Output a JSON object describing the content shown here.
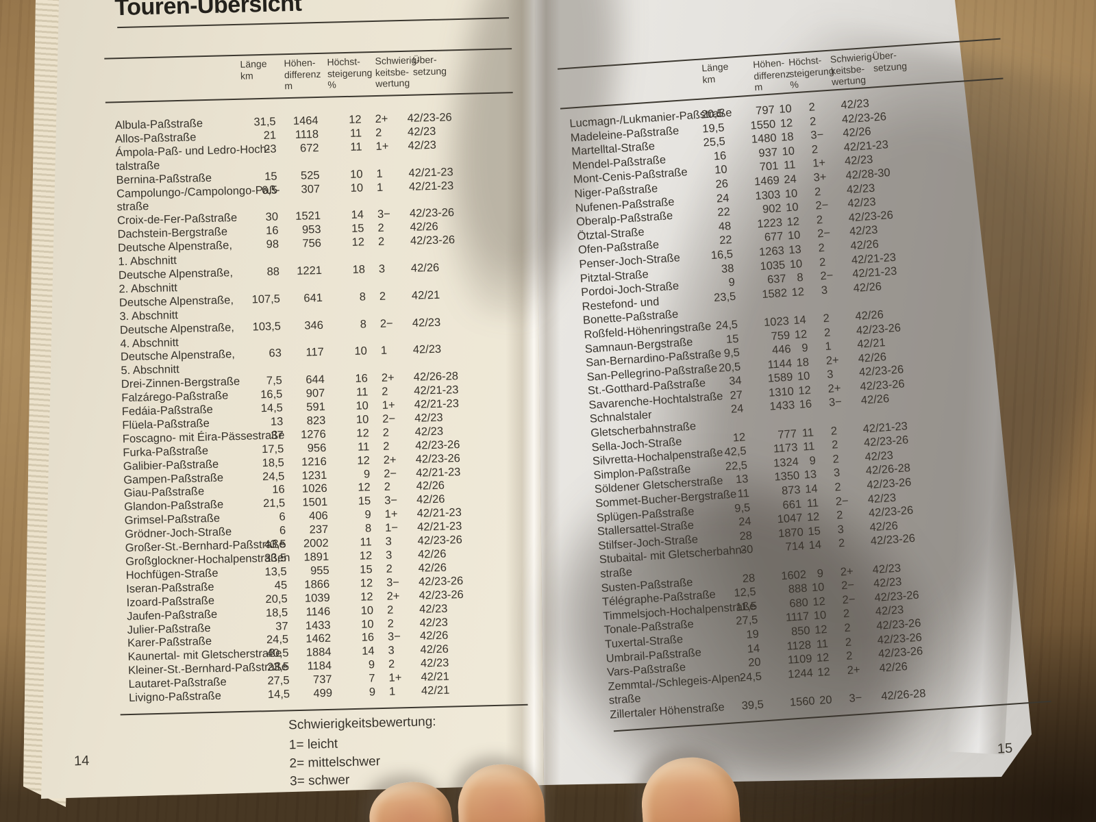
{
  "palette": {
    "wood": "#8f6f46",
    "paper_left": "#efe9d9",
    "paper_right": "#ecebe6",
    "ink": "#36322b",
    "skin": "#d8a87d"
  },
  "book": {
    "title": "Touren-Übersicht",
    "header": {
      "col_laenge": "Länge\nkm",
      "col_hoehendifferenz": "Höhen-\ndifferenz\nm",
      "col_hoechststeigerung": "Höchst-\nsteigerung\n%",
      "col_schwierigkeit": "Schwierig-\nkeitsbe-\nwertung",
      "col_uebersetzung": "Über-\nsetzung"
    },
    "legend": {
      "title": "Schwierigkeitsbewertung:",
      "items": [
        "1= leicht",
        "2= mittelschwer",
        "3= schwer"
      ]
    },
    "page_left": {
      "number": "14",
      "rows": [
        {
          "name": [
            "Albula-Paßstraße"
          ],
          "laenge": "31,5",
          "hoehe": "1464",
          "steigung": "12",
          "bewertung": "2+",
          "uebersetzung": "42/23-26"
        },
        {
          "name": [
            "Allos-Paßstraße"
          ],
          "laenge": "21",
          "hoehe": "1118",
          "steigung": "11",
          "bewertung": "2",
          "uebersetzung": "42/23"
        },
        {
          "name": [
            "Ámpola-Paß- und Ledro-Hoch-",
            "talstraße"
          ],
          "laenge": "23",
          "hoehe": "672",
          "steigung": "11",
          "bewertung": "1+",
          "uebersetzung": "42/23"
        },
        {
          "name": [
            "Bernina-Paßstraße"
          ],
          "laenge": "15",
          "hoehe": "525",
          "steigung": "10",
          "bewertung": "1",
          "uebersetzung": "42/21-23"
        },
        {
          "name": [
            "Campolungo-/Campolongo-Paß-",
            "straße"
          ],
          "laenge": "6,5",
          "hoehe": "307",
          "steigung": "10",
          "bewertung": "1",
          "uebersetzung": "42/21-23"
        },
        {
          "name": [
            "Croix-de-Fer-Paßstraße"
          ],
          "laenge": "30",
          "hoehe": "1521",
          "steigung": "14",
          "bewertung": "3−",
          "uebersetzung": "42/23-26"
        },
        {
          "name": [
            "Dachstein-Bergstraße"
          ],
          "laenge": "16",
          "hoehe": "953",
          "steigung": "15",
          "bewertung": "2",
          "uebersetzung": "42/26"
        },
        {
          "name": [
            "Deutsche Alpenstraße,",
            "1. Abschnitt"
          ],
          "laenge": "98",
          "hoehe": "756",
          "steigung": "12",
          "bewertung": "2",
          "uebersetzung": "42/23-26"
        },
        {
          "name": [
            "Deutsche Alpenstraße,",
            "2. Abschnitt"
          ],
          "laenge": "88",
          "hoehe": "1221",
          "steigung": "18",
          "bewertung": "3",
          "uebersetzung": "42/26"
        },
        {
          "name": [
            "Deutsche Alpenstraße,",
            "3. Abschnitt"
          ],
          "laenge": "107,5",
          "hoehe": "641",
          "steigung": "8",
          "bewertung": "2",
          "uebersetzung": "42/21"
        },
        {
          "name": [
            "Deutsche Alpenstraße,",
            "4. Abschnitt"
          ],
          "laenge": "103,5",
          "hoehe": "346",
          "steigung": "8",
          "bewertung": "2−",
          "uebersetzung": "42/23"
        },
        {
          "name": [
            "Deutsche Alpenstraße,",
            "5. Abschnitt"
          ],
          "laenge": "63",
          "hoehe": "117",
          "steigung": "10",
          "bewertung": "1",
          "uebersetzung": "42/23"
        },
        {
          "name": [
            "Drei-Zinnen-Bergstraße"
          ],
          "laenge": "7,5",
          "hoehe": "644",
          "steigung": "16",
          "bewertung": "2+",
          "uebersetzung": "42/26-28"
        },
        {
          "name": [
            "Falzárego-Paßstraße"
          ],
          "laenge": "16,5",
          "hoehe": "907",
          "steigung": "11",
          "bewertung": "2",
          "uebersetzung": "42/21-23"
        },
        {
          "name": [
            "Fedáia-Paßstraße"
          ],
          "laenge": "14,5",
          "hoehe": "591",
          "steigung": "10",
          "bewertung": "1+",
          "uebersetzung": "42/21-23"
        },
        {
          "name": [
            "Flüela-Paßstraße"
          ],
          "laenge": "13",
          "hoehe": "823",
          "steigung": "10",
          "bewertung": "2−",
          "uebersetzung": "42/23"
        },
        {
          "name": [
            "Foscagno- mit Éira-Pässestraße"
          ],
          "laenge": "37",
          "hoehe": "1276",
          "steigung": "12",
          "bewertung": "2",
          "uebersetzung": "42/23"
        },
        {
          "name": [
            "Furka-Paßstraße"
          ],
          "laenge": "17,5",
          "hoehe": "956",
          "steigung": "11",
          "bewertung": "2",
          "uebersetzung": "42/23-26"
        },
        {
          "name": [
            "Galibier-Paßstraße"
          ],
          "laenge": "18,5",
          "hoehe": "1216",
          "steigung": "12",
          "bewertung": "2+",
          "uebersetzung": "42/23-26"
        },
        {
          "name": [
            "Gampen-Paßstraße"
          ],
          "laenge": "24,5",
          "hoehe": "1231",
          "steigung": "9",
          "bewertung": "2−",
          "uebersetzung": "42/21-23"
        },
        {
          "name": [
            "Giau-Paßstraße"
          ],
          "laenge": "16",
          "hoehe": "1026",
          "steigung": "12",
          "bewertung": "2",
          "uebersetzung": "42/26"
        },
        {
          "name": [
            "Glandon-Paßstraße"
          ],
          "laenge": "21,5",
          "hoehe": "1501",
          "steigung": "15",
          "bewertung": "3−",
          "uebersetzung": "42/26"
        },
        {
          "name": [
            "Grimsel-Paßstraße"
          ],
          "laenge": "6",
          "hoehe": "406",
          "steigung": "9",
          "bewertung": "1+",
          "uebersetzung": "42/21-23"
        },
        {
          "name": [
            "Grödner-Joch-Straße"
          ],
          "laenge": "6",
          "hoehe": "237",
          "steigung": "8",
          "bewertung": "1−",
          "uebersetzung": "42/21-23"
        },
        {
          "name": [
            "Großer-St.-Bernhard-Paßstraße"
          ],
          "laenge": "43,5",
          "hoehe": "2002",
          "steigung": "11",
          "bewertung": "3",
          "uebersetzung": "42/23-26"
        },
        {
          "name": [
            "Großglockner-Hochalpenstraßen"
          ],
          "laenge": "33,5",
          "hoehe": "1891",
          "steigung": "12",
          "bewertung": "3",
          "uebersetzung": "42/26"
        },
        {
          "name": [
            "Hochfügen-Straße"
          ],
          "laenge": "13,5",
          "hoehe": "955",
          "steigung": "15",
          "bewertung": "2",
          "uebersetzung": "42/26"
        },
        {
          "name": [
            "Iseran-Paßstraße"
          ],
          "laenge": "45",
          "hoehe": "1866",
          "steigung": "12",
          "bewertung": "3−",
          "uebersetzung": "42/23-26"
        },
        {
          "name": [
            "Izoard-Paßstraße"
          ],
          "laenge": "20,5",
          "hoehe": "1039",
          "steigung": "12",
          "bewertung": "2+",
          "uebersetzung": "42/23-26"
        },
        {
          "name": [
            "Jaufen-Paßstraße"
          ],
          "laenge": "18,5",
          "hoehe": "1146",
          "steigung": "10",
          "bewertung": "2",
          "uebersetzung": "42/23"
        },
        {
          "name": [
            "Julier-Paßstraße"
          ],
          "laenge": "37",
          "hoehe": "1433",
          "steigung": "10",
          "bewertung": "2",
          "uebersetzung": "42/23"
        },
        {
          "name": [
            "Karer-Paßstraße"
          ],
          "laenge": "24,5",
          "hoehe": "1462",
          "steigung": "16",
          "bewertung": "3−",
          "uebersetzung": "42/26"
        },
        {
          "name": [
            "Kaunertal- mit Gletscherstraße"
          ],
          "laenge": "40,5",
          "hoehe": "1884",
          "steigung": "14",
          "bewertung": "3",
          "uebersetzung": "42/26"
        },
        {
          "name": [
            "Kleiner-St.-Bernhard-Paßstraße"
          ],
          "laenge": "23,5",
          "hoehe": "1184",
          "steigung": "9",
          "bewertung": "2",
          "uebersetzung": "42/23"
        },
        {
          "name": [
            "Lautaret-Paßstraße"
          ],
          "laenge": "27,5",
          "hoehe": "737",
          "steigung": "7",
          "bewertung": "1+",
          "uebersetzung": "42/21"
        },
        {
          "name": [
            "Livigno-Paßstraße"
          ],
          "laenge": "14,5",
          "hoehe": "499",
          "steigung": "9",
          "bewertung": "1",
          "uebersetzung": "42/21"
        }
      ]
    },
    "page_right": {
      "number": "15",
      "rows": [
        {
          "name": [
            "Lucmagn-/Lukmanier-Paßstraße"
          ],
          "laenge": "20,5",
          "hoehe": "797",
          "steigung": "10",
          "bewertung": "2",
          "uebersetzung": "42/23"
        },
        {
          "name": [
            "Madeleine-Paßstraße"
          ],
          "laenge": "19,5",
          "hoehe": "1550",
          "steigung": "12",
          "bewertung": "2",
          "uebersetzung": "42/23-26"
        },
        {
          "name": [
            "Martelltal-Straße"
          ],
          "laenge": "25,5",
          "hoehe": "1480",
          "steigung": "18",
          "bewertung": "3−",
          "uebersetzung": "42/26"
        },
        {
          "name": [
            "Mendel-Paßstraße"
          ],
          "laenge": "16",
          "hoehe": "937",
          "steigung": "10",
          "bewertung": "2",
          "uebersetzung": "42/21-23"
        },
        {
          "name": [
            "Mont-Cenis-Paßstraße"
          ],
          "laenge": "10",
          "hoehe": "701",
          "steigung": "11",
          "bewertung": "1+",
          "uebersetzung": "42/23"
        },
        {
          "name": [
            "Niger-Paßstraße"
          ],
          "laenge": "26",
          "hoehe": "1469",
          "steigung": "24",
          "bewertung": "3+",
          "uebersetzung": "42/28-30"
        },
        {
          "name": [
            "Nufenen-Paßstraße"
          ],
          "laenge": "24",
          "hoehe": "1303",
          "steigung": "10",
          "bewertung": "2",
          "uebersetzung": "42/23"
        },
        {
          "name": [
            "Oberalp-Paßstraße"
          ],
          "laenge": "22",
          "hoehe": "902",
          "steigung": "10",
          "bewertung": "2−",
          "uebersetzung": "42/23"
        },
        {
          "name": [
            "Ötztal-Straße"
          ],
          "laenge": "48",
          "hoehe": "1223",
          "steigung": "12",
          "bewertung": "2",
          "uebersetzung": "42/23-26"
        },
        {
          "name": [
            "Ofen-Paßstraße"
          ],
          "laenge": "22",
          "hoehe": "677",
          "steigung": "10",
          "bewertung": "2−",
          "uebersetzung": "42/23"
        },
        {
          "name": [
            "Penser-Joch-Straße"
          ],
          "laenge": "16,5",
          "hoehe": "1263",
          "steigung": "13",
          "bewertung": "2",
          "uebersetzung": "42/26"
        },
        {
          "name": [
            "Pitztal-Straße"
          ],
          "laenge": "38",
          "hoehe": "1035",
          "steigung": "10",
          "bewertung": "2",
          "uebersetzung": "42/21-23"
        },
        {
          "name": [
            "Pordoi-Joch-Straße"
          ],
          "laenge": "9",
          "hoehe": "637",
          "steigung": "8",
          "bewertung": "2−",
          "uebersetzung": "42/21-23"
        },
        {
          "name": [
            "Restefond- und",
            "Bonette-Paßstraße"
          ],
          "laenge": "23,5",
          "hoehe": "1582",
          "steigung": "12",
          "bewertung": "3",
          "uebersetzung": "42/26"
        },
        {
          "name": [
            "Roßfeld-Höhenringstraße"
          ],
          "laenge": "24,5",
          "hoehe": "1023",
          "steigung": "14",
          "bewertung": "2",
          "uebersetzung": "42/26"
        },
        {
          "name": [
            "Samnaun-Bergstraße"
          ],
          "laenge": "15",
          "hoehe": "759",
          "steigung": "12",
          "bewertung": "2",
          "uebersetzung": "42/23-26"
        },
        {
          "name": [
            "San-Bernardino-Paßstraße"
          ],
          "laenge": "9,5",
          "hoehe": "446",
          "steigung": "9",
          "bewertung": "1",
          "uebersetzung": "42/21"
        },
        {
          "name": [
            "San-Pellegrino-Paßstraße"
          ],
          "laenge": "20,5",
          "hoehe": "1144",
          "steigung": "18",
          "bewertung": "2+",
          "uebersetzung": "42/26"
        },
        {
          "name": [
            "St.-Gotthard-Paßstraße"
          ],
          "laenge": "34",
          "hoehe": "1589",
          "steigung": "10",
          "bewertung": "3",
          "uebersetzung": "42/23-26"
        },
        {
          "name": [
            "Savarenche-Hochtalstraße"
          ],
          "laenge": "27",
          "hoehe": "1310",
          "steigung": "12",
          "bewertung": "2+",
          "uebersetzung": "42/23-26"
        },
        {
          "name": [
            "Schnalstaler",
            "Gletscherbahnstraße"
          ],
          "laenge": "24",
          "hoehe": "1433",
          "steigung": "16",
          "bewertung": "3−",
          "uebersetzung": "42/26"
        },
        {
          "name": [
            "Sella-Joch-Straße"
          ],
          "laenge": "12",
          "hoehe": "777",
          "steigung": "11",
          "bewertung": "2",
          "uebersetzung": "42/21-23"
        },
        {
          "name": [
            "Silvretta-Hochalpenstraße"
          ],
          "laenge": "42,5",
          "hoehe": "1173",
          "steigung": "11",
          "bewertung": "2",
          "uebersetzung": "42/23-26"
        },
        {
          "name": [
            "Simplon-Paßstraße"
          ],
          "laenge": "22,5",
          "hoehe": "1324",
          "steigung": "9",
          "bewertung": "2",
          "uebersetzung": "42/23"
        },
        {
          "name": [
            "Söldener Gletscherstraße"
          ],
          "laenge": "13",
          "hoehe": "1350",
          "steigung": "13",
          "bewertung": "3",
          "uebersetzung": "42/26-28"
        },
        {
          "name": [
            "Sommet-Bucher-Bergstraße"
          ],
          "laenge": "11",
          "hoehe": "873",
          "steigung": "14",
          "bewertung": "2",
          "uebersetzung": "42/23-26"
        },
        {
          "name": [
            "Splügen-Paßstraße"
          ],
          "laenge": "9,5",
          "hoehe": "661",
          "steigung": "11",
          "bewertung": "2−",
          "uebersetzung": "42/23"
        },
        {
          "name": [
            "Stallersattel-Straße"
          ],
          "laenge": "24",
          "hoehe": "1047",
          "steigung": "12",
          "bewertung": "2",
          "uebersetzung": "42/23-26"
        },
        {
          "name": [
            "Stilfser-Joch-Straße"
          ],
          "laenge": "28",
          "hoehe": "1870",
          "steigung": "15",
          "bewertung": "3",
          "uebersetzung": "42/26"
        },
        {
          "name": [
            "Stubaital- mit Gletscherbahn-",
            "straße"
          ],
          "laenge": "30",
          "hoehe": "714",
          "steigung": "14",
          "bewertung": "2",
          "uebersetzung": "42/23-26"
        },
        {
          "name": [
            "Susten-Paßstraße"
          ],
          "laenge": "28",
          "hoehe": "1602",
          "steigung": "9",
          "bewertung": "2+",
          "uebersetzung": "42/23"
        },
        {
          "name": [
            "Télégraphe-Paßstraße"
          ],
          "laenge": "12,5",
          "hoehe": "888",
          "steigung": "10",
          "bewertung": "2−",
          "uebersetzung": "42/23"
        },
        {
          "name": [
            "Timmelsjoch-Hochalpenstraße"
          ],
          "laenge": "11,5",
          "hoehe": "680",
          "steigung": "12",
          "bewertung": "2−",
          "uebersetzung": "42/23-26"
        },
        {
          "name": [
            "Tonale-Paßstraße"
          ],
          "laenge": "27,5",
          "hoehe": "1117",
          "steigung": "10",
          "bewertung": "2",
          "uebersetzung": "42/23"
        },
        {
          "name": [
            "Tuxertal-Straße"
          ],
          "laenge": "19",
          "hoehe": "850",
          "steigung": "12",
          "bewertung": "2",
          "uebersetzung": "42/23-26"
        },
        {
          "name": [
            "Umbrail-Paßstraße"
          ],
          "laenge": "14",
          "hoehe": "1128",
          "steigung": "11",
          "bewertung": "2",
          "uebersetzung": "42/23-26"
        },
        {
          "name": [
            "Vars-Paßstraße"
          ],
          "laenge": "20",
          "hoehe": "1109",
          "steigung": "12",
          "bewertung": "2",
          "uebersetzung": "42/23-26"
        },
        {
          "name": [
            "Zemmtal-/Schlegeis-Alpen-",
            "straße"
          ],
          "laenge": "24,5",
          "hoehe": "1244",
          "steigung": "12",
          "bewertung": "2+",
          "uebersetzung": "42/26"
        },
        {
          "name": [
            "Zillertaler Höhenstraße"
          ],
          "laenge": "39,5",
          "hoehe": "1560",
          "steigung": "20",
          "bewertung": "3−",
          "uebersetzung": "42/26-28"
        }
      ]
    }
  }
}
